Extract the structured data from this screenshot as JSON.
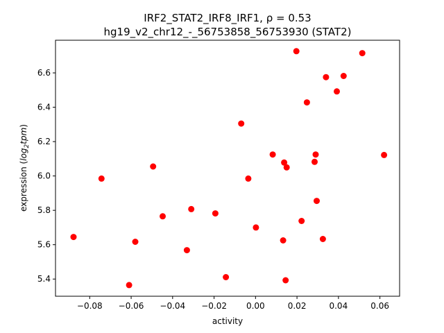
{
  "chart_data": {
    "type": "scatter",
    "title_line1": "IRF2_STAT2_IRF8_IRF1, ρ = 0.53",
    "title_line2": "hg19_v2_chr12_-_56753858_56753930 (STAT2)",
    "xlabel": "activity",
    "ylabel_prefix": "expression (",
    "ylabel_log": "log",
    "ylabel_sub": "2",
    "ylabel_tpm": "tpm",
    "ylabel_suffix": ")",
    "xlim": [
      -0.0965,
      0.0695
    ],
    "ylim": [
      5.3,
      6.79
    ],
    "x_ticks": [
      -0.08,
      -0.06,
      -0.04,
      -0.02,
      0.0,
      0.02,
      0.04,
      0.06
    ],
    "x_tick_labels": [
      "−0.08",
      "−0.06",
      "−0.04",
      "−0.02",
      "0.00",
      "0.02",
      "0.04",
      "0.06"
    ],
    "y_ticks": [
      5.4,
      5.6,
      5.8,
      6.0,
      6.2,
      6.4,
      6.6
    ],
    "y_tick_labels": [
      "5.4",
      "5.6",
      "5.8",
      "6.0",
      "6.2",
      "6.4",
      "6.6"
    ],
    "marker_color": "#ff0000",
    "grid": false,
    "points": [
      {
        "x": -0.0878,
        "y": 5.645
      },
      {
        "x": -0.0743,
        "y": 5.985
      },
      {
        "x": -0.061,
        "y": 5.365
      },
      {
        "x": -0.058,
        "y": 5.617
      },
      {
        "x": -0.0494,
        "y": 6.055
      },
      {
        "x": -0.0448,
        "y": 5.765
      },
      {
        "x": -0.0331,
        "y": 5.568
      },
      {
        "x": -0.031,
        "y": 5.807
      },
      {
        "x": -0.0194,
        "y": 5.782
      },
      {
        "x": -0.0143,
        "y": 5.411
      },
      {
        "x": -0.0069,
        "y": 6.305
      },
      {
        "x": -0.0035,
        "y": 5.985
      },
      {
        "x": 0.0002,
        "y": 5.7
      },
      {
        "x": 0.0083,
        "y": 6.125
      },
      {
        "x": 0.0133,
        "y": 5.625
      },
      {
        "x": 0.0138,
        "y": 6.078
      },
      {
        "x": 0.0145,
        "y": 5.393
      },
      {
        "x": 0.015,
        "y": 6.05
      },
      {
        "x": 0.0197,
        "y": 6.726
      },
      {
        "x": 0.0222,
        "y": 5.738
      },
      {
        "x": 0.0248,
        "y": 6.428
      },
      {
        "x": 0.0285,
        "y": 6.082
      },
      {
        "x": 0.029,
        "y": 6.125
      },
      {
        "x": 0.0295,
        "y": 5.855
      },
      {
        "x": 0.0325,
        "y": 5.633
      },
      {
        "x": 0.034,
        "y": 6.575
      },
      {
        "x": 0.0392,
        "y": 6.492
      },
      {
        "x": 0.0425,
        "y": 6.582
      },
      {
        "x": 0.0515,
        "y": 6.715
      },
      {
        "x": 0.062,
        "y": 6.122
      }
    ]
  }
}
